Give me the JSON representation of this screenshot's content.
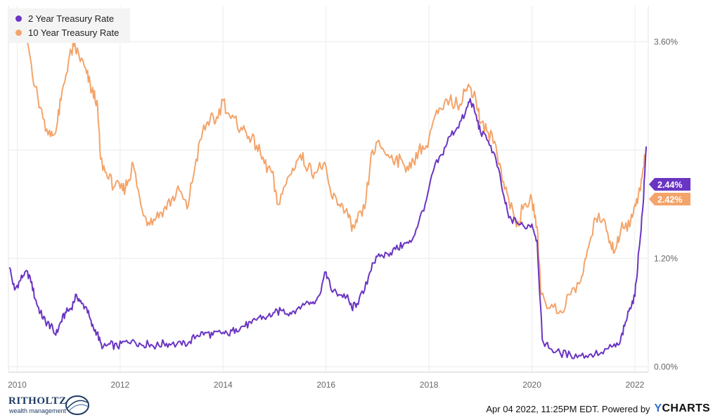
{
  "chart_data": {
    "type": "line",
    "title": "",
    "xlabel": "",
    "ylabel": "",
    "x_range": [
      2009.83,
      2022.26
    ],
    "ylim": [
      -0.06,
      4.0
    ],
    "x_ticks": [
      "2010",
      "2012",
      "2014",
      "2016",
      "2018",
      "2020",
      "2022"
    ],
    "y_ticks": [
      "0.00%",
      "1.20%",
      "3.60%"
    ],
    "grid": true,
    "legend_position": "top-left",
    "series": [
      {
        "name": "2 Year Treasury Rate",
        "color": "#6a35c2",
        "end_label": "2.44%",
        "points": [
          [
            2009.85,
            1.1
          ],
          [
            2009.95,
            0.85
          ],
          [
            2010.05,
            0.95
          ],
          [
            2010.15,
            1.05
          ],
          [
            2010.25,
            1.0
          ],
          [
            2010.35,
            0.75
          ],
          [
            2010.45,
            0.6
          ],
          [
            2010.55,
            0.5
          ],
          [
            2010.65,
            0.45
          ],
          [
            2010.75,
            0.35
          ],
          [
            2010.85,
            0.5
          ],
          [
            2010.95,
            0.6
          ],
          [
            2011.05,
            0.65
          ],
          [
            2011.15,
            0.8
          ],
          [
            2011.25,
            0.7
          ],
          [
            2011.35,
            0.65
          ],
          [
            2011.45,
            0.45
          ],
          [
            2011.55,
            0.38
          ],
          [
            2011.65,
            0.2
          ],
          [
            2011.8,
            0.25
          ],
          [
            2011.95,
            0.22
          ],
          [
            2012.1,
            0.28
          ],
          [
            2012.25,
            0.3
          ],
          [
            2012.4,
            0.25
          ],
          [
            2012.55,
            0.25
          ],
          [
            2012.7,
            0.23
          ],
          [
            2012.85,
            0.26
          ],
          [
            2013.0,
            0.25
          ],
          [
            2013.2,
            0.24
          ],
          [
            2013.35,
            0.28
          ],
          [
            2013.5,
            0.35
          ],
          [
            2013.65,
            0.38
          ],
          [
            2013.8,
            0.35
          ],
          [
            2013.95,
            0.38
          ],
          [
            2014.1,
            0.35
          ],
          [
            2014.25,
            0.42
          ],
          [
            2014.4,
            0.45
          ],
          [
            2014.55,
            0.48
          ],
          [
            2014.7,
            0.55
          ],
          [
            2014.85,
            0.55
          ],
          [
            2015.0,
            0.6
          ],
          [
            2015.15,
            0.62
          ],
          [
            2015.3,
            0.6
          ],
          [
            2015.45,
            0.65
          ],
          [
            2015.6,
            0.7
          ],
          [
            2015.75,
            0.72
          ],
          [
            2015.85,
            0.78
          ],
          [
            2016.0,
            1.05
          ],
          [
            2016.1,
            0.85
          ],
          [
            2016.25,
            0.8
          ],
          [
            2016.4,
            0.78
          ],
          [
            2016.5,
            0.65
          ],
          [
            2016.6,
            0.7
          ],
          [
            2016.75,
            0.85
          ],
          [
            2016.9,
            1.15
          ],
          [
            2017.05,
            1.22
          ],
          [
            2017.2,
            1.25
          ],
          [
            2017.35,
            1.3
          ],
          [
            2017.5,
            1.35
          ],
          [
            2017.65,
            1.38
          ],
          [
            2017.8,
            1.6
          ],
          [
            2017.95,
            1.85
          ],
          [
            2018.1,
            2.2
          ],
          [
            2018.25,
            2.35
          ],
          [
            2018.4,
            2.55
          ],
          [
            2018.55,
            2.65
          ],
          [
            2018.7,
            2.8
          ],
          [
            2018.8,
            2.97
          ],
          [
            2018.9,
            2.8
          ],
          [
            2019.0,
            2.6
          ],
          [
            2019.15,
            2.5
          ],
          [
            2019.3,
            2.3
          ],
          [
            2019.45,
            1.9
          ],
          [
            2019.55,
            1.65
          ],
          [
            2019.7,
            1.6
          ],
          [
            2019.85,
            1.55
          ],
          [
            2020.0,
            1.58
          ],
          [
            2020.1,
            1.4
          ],
          [
            2020.2,
            0.3
          ],
          [
            2020.35,
            0.2
          ],
          [
            2020.55,
            0.15
          ],
          [
            2020.75,
            0.13
          ],
          [
            2020.95,
            0.12
          ],
          [
            2021.15,
            0.14
          ],
          [
            2021.35,
            0.16
          ],
          [
            2021.55,
            0.22
          ],
          [
            2021.7,
            0.25
          ],
          [
            2021.8,
            0.45
          ],
          [
            2021.9,
            0.65
          ],
          [
            2022.0,
            0.78
          ],
          [
            2022.08,
            1.3
          ],
          [
            2022.16,
            1.8
          ],
          [
            2022.22,
            2.44
          ]
        ]
      },
      {
        "name": "10 Year Treasury Rate",
        "color": "#f4a46a",
        "end_label": "2.42%",
        "points": [
          [
            2009.85,
            3.7
          ],
          [
            2009.95,
            3.65
          ],
          [
            2010.1,
            3.85
          ],
          [
            2010.2,
            3.6
          ],
          [
            2010.35,
            3.1
          ],
          [
            2010.5,
            2.75
          ],
          [
            2010.65,
            2.55
          ],
          [
            2010.75,
            2.6
          ],
          [
            2010.85,
            2.95
          ],
          [
            2011.0,
            3.4
          ],
          [
            2011.1,
            3.55
          ],
          [
            2011.2,
            3.45
          ],
          [
            2011.35,
            3.25
          ],
          [
            2011.45,
            3.05
          ],
          [
            2011.55,
            2.95
          ],
          [
            2011.62,
            2.3
          ],
          [
            2011.75,
            2.1
          ],
          [
            2011.9,
            2.0
          ],
          [
            2012.05,
            1.95
          ],
          [
            2012.15,
            2.05
          ],
          [
            2012.25,
            2.25
          ],
          [
            2012.4,
            1.8
          ],
          [
            2012.55,
            1.6
          ],
          [
            2012.7,
            1.65
          ],
          [
            2012.85,
            1.75
          ],
          [
            2013.0,
            1.85
          ],
          [
            2013.15,
            1.95
          ],
          [
            2013.3,
            1.75
          ],
          [
            2013.45,
            2.2
          ],
          [
            2013.6,
            2.6
          ],
          [
            2013.75,
            2.75
          ],
          [
            2013.85,
            2.7
          ],
          [
            2014.0,
            2.95
          ],
          [
            2014.15,
            2.75
          ],
          [
            2014.35,
            2.65
          ],
          [
            2014.5,
            2.55
          ],
          [
            2014.65,
            2.45
          ],
          [
            2014.8,
            2.25
          ],
          [
            2014.95,
            2.15
          ],
          [
            2015.05,
            1.8
          ],
          [
            2015.2,
            2.0
          ],
          [
            2015.35,
            2.2
          ],
          [
            2015.5,
            2.35
          ],
          [
            2015.65,
            2.2
          ],
          [
            2015.8,
            2.15
          ],
          [
            2015.95,
            2.25
          ],
          [
            2016.1,
            1.9
          ],
          [
            2016.25,
            1.8
          ],
          [
            2016.4,
            1.75
          ],
          [
            2016.5,
            1.5
          ],
          [
            2016.6,
            1.6
          ],
          [
            2016.75,
            1.75
          ],
          [
            2016.9,
            2.4
          ],
          [
            2017.05,
            2.45
          ],
          [
            2017.2,
            2.35
          ],
          [
            2017.35,
            2.3
          ],
          [
            2017.5,
            2.25
          ],
          [
            2017.65,
            2.2
          ],
          [
            2017.8,
            2.4
          ],
          [
            2017.95,
            2.45
          ],
          [
            2018.1,
            2.75
          ],
          [
            2018.25,
            2.85
          ],
          [
            2018.4,
            2.95
          ],
          [
            2018.55,
            2.9
          ],
          [
            2018.7,
            3.05
          ],
          [
            2018.8,
            3.1
          ],
          [
            2018.9,
            3.0
          ],
          [
            2019.0,
            2.7
          ],
          [
            2019.15,
            2.6
          ],
          [
            2019.3,
            2.45
          ],
          [
            2019.45,
            2.05
          ],
          [
            2019.55,
            1.85
          ],
          [
            2019.7,
            1.55
          ],
          [
            2019.85,
            1.8
          ],
          [
            2020.0,
            1.85
          ],
          [
            2020.1,
            1.55
          ],
          [
            2020.18,
            0.8
          ],
          [
            2020.35,
            0.65
          ],
          [
            2020.55,
            0.62
          ],
          [
            2020.75,
            0.8
          ],
          [
            2020.95,
            0.95
          ],
          [
            2021.05,
            1.2
          ],
          [
            2021.2,
            1.6
          ],
          [
            2021.3,
            1.7
          ],
          [
            2021.45,
            1.5
          ],
          [
            2021.55,
            1.3
          ],
          [
            2021.65,
            1.35
          ],
          [
            2021.75,
            1.6
          ],
          [
            2021.9,
            1.55
          ],
          [
            2022.0,
            1.8
          ],
          [
            2022.1,
            1.95
          ],
          [
            2022.15,
            2.15
          ],
          [
            2022.22,
            2.42
          ]
        ]
      }
    ]
  },
  "footer": {
    "logo_text": "RITHOLTZ",
    "logo_subtext": "wealth management",
    "timestamp": "Apr 04 2022, 11:25PM EDT.  Powered by",
    "brand_y": "Y",
    "brand_rest": "CHARTS"
  }
}
